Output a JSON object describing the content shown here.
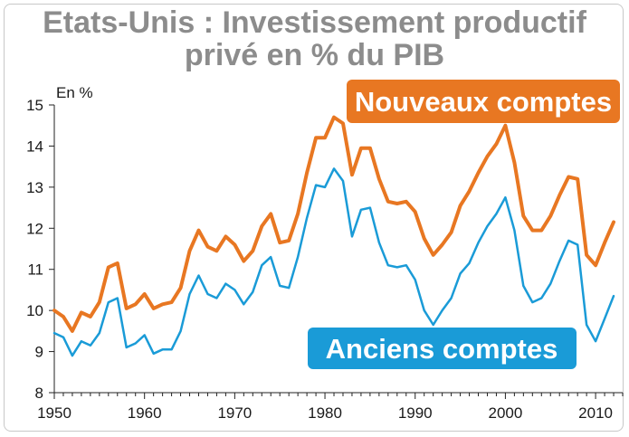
{
  "title_line1": "Etats-Unis : Investissement productif",
  "title_line2": "privé en % du PIB",
  "colors": {
    "new": "#e87722",
    "old": "#1a9bd7",
    "title": "#8c8c8c"
  },
  "chart_data": {
    "type": "line",
    "ylabel": "En %",
    "ylim": [
      8,
      15
    ],
    "yticks": [
      8,
      9,
      10,
      11,
      12,
      13,
      14,
      15
    ],
    "xlim": [
      1950,
      2013
    ],
    "xticks": [
      1950,
      1960,
      1970,
      1980,
      1990,
      2000,
      2010
    ],
    "grid": false,
    "x": [
      1950,
      1951,
      1952,
      1953,
      1954,
      1955,
      1956,
      1957,
      1958,
      1959,
      1960,
      1961,
      1962,
      1963,
      1964,
      1965,
      1966,
      1967,
      1968,
      1969,
      1970,
      1971,
      1972,
      1973,
      1974,
      1975,
      1976,
      1977,
      1978,
      1979,
      1980,
      1981,
      1982,
      1983,
      1984,
      1985,
      1986,
      1987,
      1988,
      1989,
      1990,
      1991,
      1992,
      1993,
      1994,
      1995,
      1996,
      1997,
      1998,
      1999,
      2000,
      2001,
      2002,
      2003,
      2004,
      2005,
      2006,
      2007,
      2008,
      2009,
      2010,
      2011,
      2012
    ],
    "series": [
      {
        "name": "Nouveaux comptes",
        "color": "#e87722",
        "values": [
          10.0,
          9.85,
          9.5,
          9.95,
          9.85,
          10.2,
          11.05,
          11.15,
          10.05,
          10.15,
          10.4,
          10.05,
          10.15,
          10.2,
          10.55,
          11.45,
          11.95,
          11.55,
          11.45,
          11.8,
          11.6,
          11.2,
          11.45,
          12.05,
          12.35,
          11.65,
          11.7,
          12.35,
          13.35,
          14.2,
          14.2,
          14.7,
          14.55,
          13.3,
          13.95,
          13.95,
          13.2,
          12.65,
          12.6,
          12.65,
          12.4,
          11.75,
          11.35,
          11.6,
          11.9,
          12.55,
          12.9,
          13.35,
          13.75,
          14.05,
          14.5,
          13.6,
          12.3,
          11.95,
          11.95,
          12.3,
          12.8,
          13.25,
          13.2,
          11.35,
          11.1,
          11.65,
          12.15
        ]
      },
      {
        "name": "Anciens comptes",
        "color": "#1a9bd7",
        "values": [
          9.45,
          9.35,
          8.9,
          9.25,
          9.15,
          9.45,
          10.2,
          10.3,
          9.1,
          9.2,
          9.4,
          8.95,
          9.05,
          9.05,
          9.5,
          10.4,
          10.85,
          10.4,
          10.3,
          10.65,
          10.5,
          10.15,
          10.45,
          11.1,
          11.3,
          10.6,
          10.55,
          11.3,
          12.25,
          13.05,
          13.0,
          13.45,
          13.15,
          11.8,
          12.45,
          12.5,
          11.65,
          11.1,
          11.05,
          11.1,
          10.75,
          10.0,
          9.65,
          10.0,
          10.3,
          10.9,
          11.15,
          11.65,
          12.05,
          12.35,
          12.75,
          11.95,
          10.6,
          10.2,
          10.3,
          10.65,
          11.2,
          11.7,
          11.6,
          9.65,
          9.25,
          9.8,
          10.35
        ]
      }
    ],
    "labels": {
      "new": "Nouveaux comptes",
      "old": "Anciens comptes"
    }
  }
}
